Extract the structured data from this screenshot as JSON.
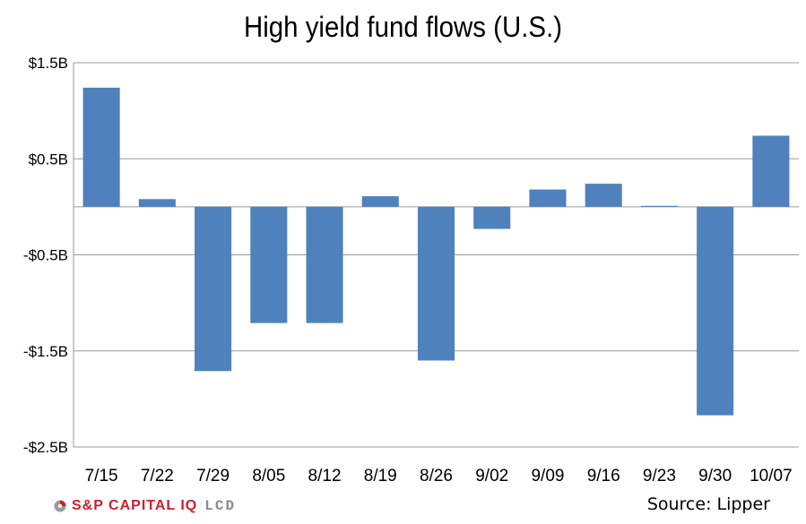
{
  "chart_data": {
    "type": "bar",
    "title": "High yield fund flows (U.S.)",
    "categories": [
      "7/15",
      "7/22",
      "7/29",
      "8/05",
      "8/12",
      "8/19",
      "8/26",
      "9/02",
      "9/09",
      "9/16",
      "9/23",
      "9/30",
      "10/07"
    ],
    "values": [
      1.24,
      0.08,
      -1.71,
      -1.21,
      -1.21,
      0.11,
      -1.6,
      -0.23,
      0.18,
      0.24,
      0.01,
      -2.17,
      0.74
    ],
    "ylim": [
      -2.5,
      1.5
    ],
    "yticks": [
      1.5,
      0.5,
      -0.5,
      -1.5,
      -2.5
    ],
    "ytick_labels": [
      "$1.5B",
      "$0.5B",
      "-$0.5B",
      "-$1.5B",
      "-$2.5B"
    ],
    "xlabel": "",
    "ylabel": "",
    "grid": true,
    "bar_color": "#4f81bd",
    "grid_color": "#9a9a9a"
  },
  "footer": {
    "brand": "S&P CAPITAL IQ",
    "brand_suffix": "LCD",
    "brand_color": "#cc1f2f",
    "logo_icon": "sp-capital-iq-logo-icon",
    "source": "Source: Lipper"
  }
}
